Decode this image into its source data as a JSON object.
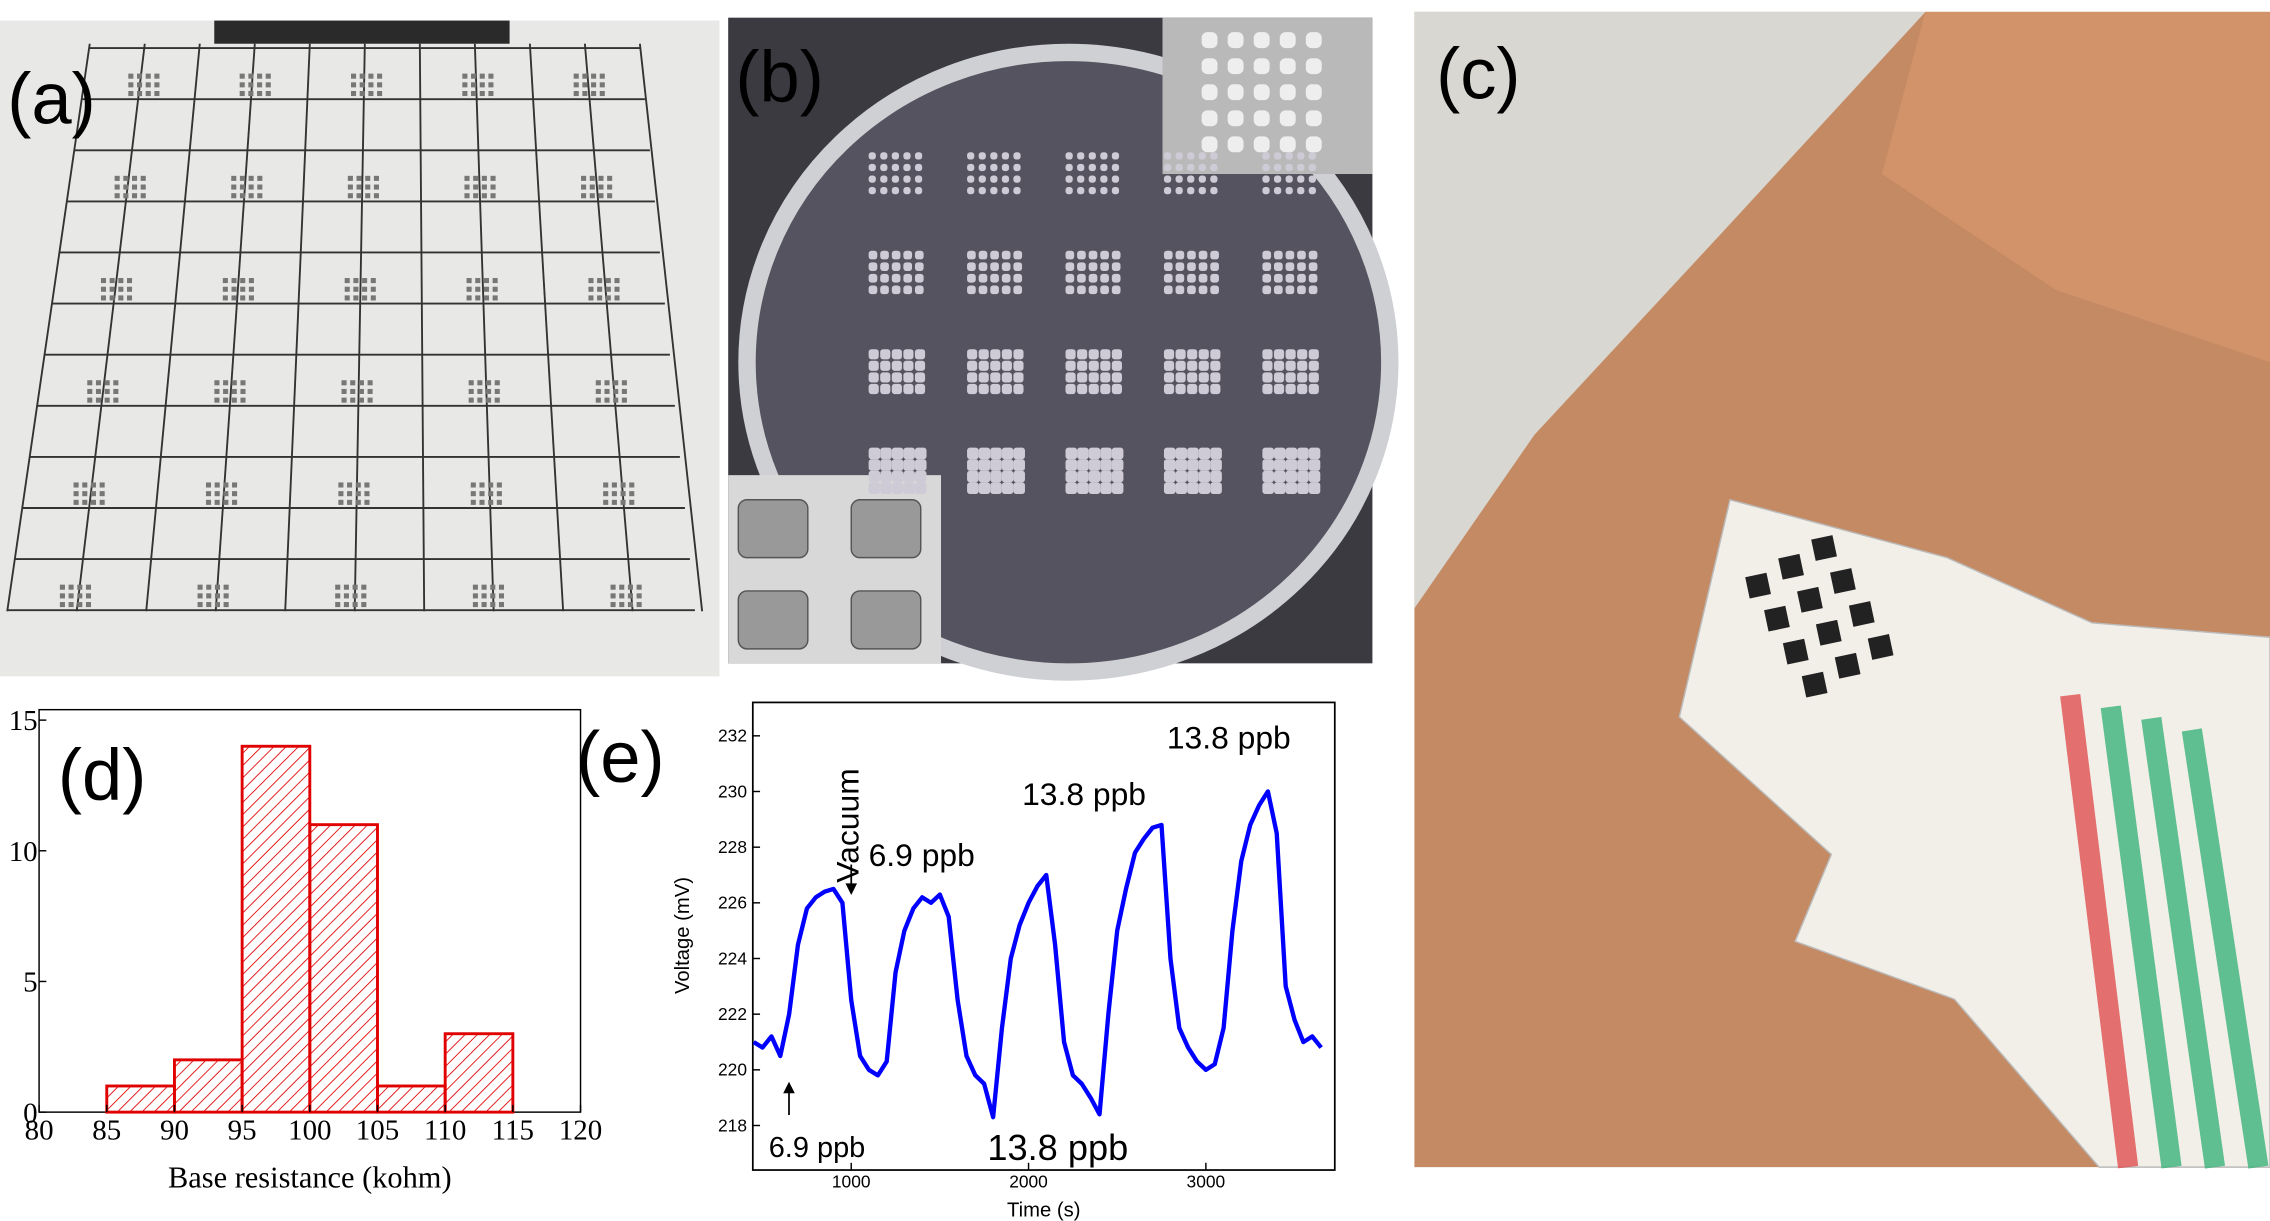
{
  "panels": {
    "a": "(a)",
    "b": "(b)",
    "c": "(c)"
  },
  "chart_data": [
    {
      "type": "histogram",
      "label": "(d)",
      "bins": [
        85,
        90,
        95,
        100,
        105,
        110,
        115
      ],
      "values": [
        1,
        2,
        14,
        11,
        1,
        3
      ],
      "color": "#e00000",
      "xlim": [
        80,
        120
      ],
      "xticks": [
        80,
        85,
        90,
        95,
        100,
        105,
        110,
        115,
        120
      ],
      "ylim": [
        0,
        15.4
      ],
      "yticks": [
        0,
        5,
        10,
        15
      ],
      "xlabel": "Base resistance (kohm)"
    },
    {
      "type": "line",
      "label": "(e)",
      "x": [
        450,
        500,
        550,
        600,
        650,
        700,
        750,
        800,
        850,
        900,
        950,
        1000,
        1050,
        1100,
        1150,
        1200,
        1250,
        1300,
        1350,
        1400,
        1450,
        1500,
        1550,
        1600,
        1650,
        1700,
        1750,
        1800,
        1850,
        1900,
        1950,
        2000,
        2050,
        2100,
        2150,
        2200,
        2250,
        2300,
        2350,
        2400,
        2450,
        2500,
        2550,
        2600,
        2650,
        2700,
        2750,
        2800,
        2850,
        2900,
        2950,
        3000,
        3050,
        3100,
        3150,
        3200,
        3250,
        3300,
        3350,
        3400,
        3450,
        3500,
        3550,
        3600,
        3650
      ],
      "values": [
        221,
        220.8,
        221.2,
        220.5,
        222,
        224.5,
        225.8,
        226.2,
        226.4,
        226.5,
        226,
        222.5,
        220.5,
        220,
        219.8,
        220.3,
        223.5,
        225,
        225.8,
        226.2,
        226,
        226.3,
        225.5,
        222.5,
        220.5,
        219.8,
        219.5,
        218.3,
        221.5,
        224,
        225.2,
        226,
        226.6,
        227,
        224.5,
        221,
        219.8,
        219.5,
        219,
        218.4,
        222,
        225,
        226.5,
        227.8,
        228.3,
        228.7,
        228.8,
        224,
        221.5,
        220.8,
        220.3,
        220,
        220.2,
        221.5,
        225,
        227.5,
        228.8,
        229.5,
        230,
        228.5,
        223,
        221.8,
        221,
        221.2,
        220.8
      ],
      "color": "#0000ff",
      "xlim": [
        445,
        3727
      ],
      "xticks": [
        1000,
        2000,
        3000
      ],
      "ylim": [
        216.4,
        233.2
      ],
      "yticks": [
        218,
        220,
        222,
        224,
        226,
        228,
        230,
        232
      ],
      "xlabel": "Time (s)",
      "ylabel": "Voltage (mV)",
      "annotations": [
        "Vacuum",
        "6.9 ppb",
        "13.8 ppb",
        "13.8 ppb",
        "6.9 ppb",
        "13.8 ppb"
      ]
    }
  ]
}
